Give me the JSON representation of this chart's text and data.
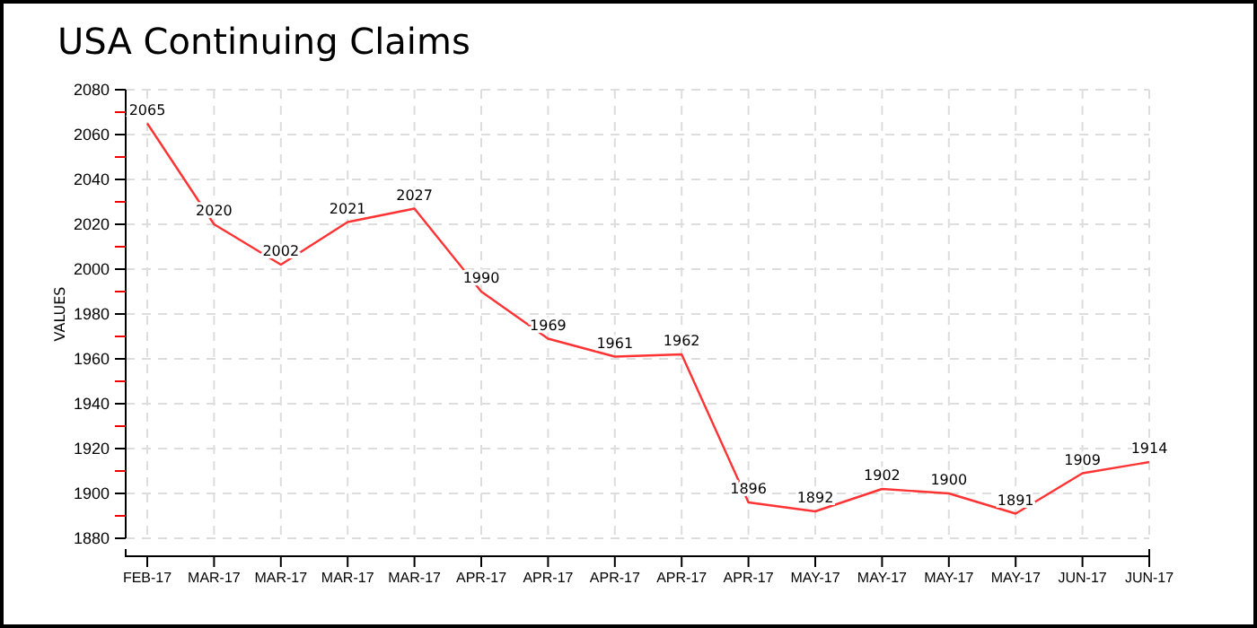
{
  "chart_data": {
    "type": "line",
    "title": "USA Continuing Claims",
    "ylabel": "VALUES",
    "categories": [
      "FEB-17",
      "MAR-17",
      "MAR-17",
      "MAR-17",
      "MAR-17",
      "APR-17",
      "APR-17",
      "APR-17",
      "APR-17",
      "APR-17",
      "MAY-17",
      "MAY-17",
      "MAY-17",
      "MAY-17",
      "JUN-17",
      "JUN-17"
    ],
    "series": [
      {
        "color": "#ff3333",
        "values": [
          2065,
          2020,
          2002,
          2021,
          2027,
          1990,
          1969,
          1961,
          1962,
          1896,
          1892,
          1902,
          1900,
          1891,
          1909,
          1914
        ]
      }
    ],
    "ylim": [
      1880,
      2080
    ],
    "yticks": [
      1880,
      {
        "value": 1890,
        "label": null
      },
      1900,
      {
        "value": 1910,
        "label": null
      },
      1920,
      {
        "value": 1930,
        "label": null
      },
      1940,
      {
        "value": 1950,
        "label": null
      },
      1960,
      {
        "value": 1970,
        "label": null
      },
      1980,
      {
        "value": 1990,
        "label": null
      },
      2000,
      {
        "value": 2010,
        "label": null
      },
      2020,
      {
        "value": 2030,
        "label": null
      },
      2040,
      {
        "value": 2050,
        "label": null
      },
      2060,
      {
        "value": 2070,
        "label": null
      },
      2080
    ],
    "grid": true,
    "data_labels": true,
    "marker": "none",
    "line_style": "solid"
  }
}
